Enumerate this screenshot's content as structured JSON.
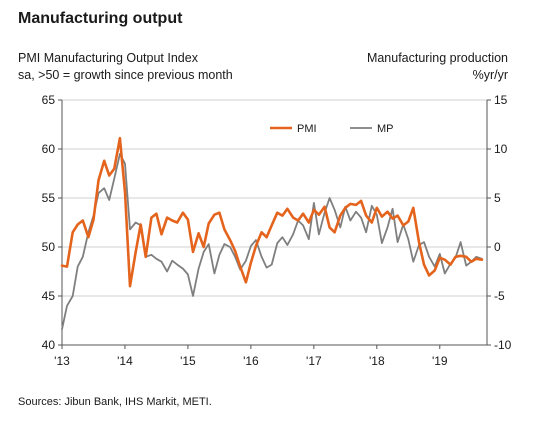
{
  "page": {
    "title": "Manufacturing output",
    "left_axis_title_line1": "PMI Manufacturing Output Index",
    "left_axis_title_line2": "sa, >50 = growth since previous month",
    "right_axis_title_line1": "Manufacturing production",
    "right_axis_title_line2": "%yr/yr",
    "source": "Sources: Jibun Bank, IHS Markit, METI."
  },
  "colors": {
    "pmi": "#e4641d",
    "mp": "#7f7f7f",
    "grid": "#d0d0d0",
    "axis": "#555555"
  },
  "chart_data": {
    "type": "line",
    "title": "Manufacturing output",
    "x_tick_labels": [
      "'13",
      "'14",
      "'15",
      "'16",
      "'17",
      "'18",
      "'19"
    ],
    "xlim": [
      2013.0,
      2019.75
    ],
    "ylim_left": [
      40,
      65
    ],
    "yticks_left": [
      40,
      45,
      50,
      55,
      60,
      65
    ],
    "ylim_right": [
      -10,
      15
    ],
    "yticks_right": [
      -10,
      -5,
      0,
      5,
      10,
      15
    ],
    "grid": "horizontal",
    "legend_placement": "top-right",
    "series": [
      {
        "name": "PMI",
        "axis": "left",
        "x": [
          2013.0,
          2013.08,
          2013.17,
          2013.25,
          2013.33,
          2013.42,
          2013.5,
          2013.58,
          2013.67,
          2013.75,
          2013.83,
          2013.92,
          2014.0,
          2014.08,
          2014.17,
          2014.25,
          2014.33,
          2014.42,
          2014.5,
          2014.58,
          2014.67,
          2014.75,
          2014.83,
          2014.92,
          2015.0,
          2015.08,
          2015.17,
          2015.25,
          2015.33,
          2015.42,
          2015.5,
          2015.58,
          2015.67,
          2015.75,
          2015.83,
          2015.92,
          2016.0,
          2016.08,
          2016.17,
          2016.25,
          2016.33,
          2016.42,
          2016.5,
          2016.58,
          2016.67,
          2016.75,
          2016.83,
          2016.92,
          2017.0,
          2017.08,
          2017.17,
          2017.25,
          2017.33,
          2017.42,
          2017.5,
          2017.58,
          2017.67,
          2017.75,
          2017.83,
          2017.92,
          2018.0,
          2018.08,
          2018.17,
          2018.25,
          2018.33,
          2018.42,
          2018.5,
          2018.58,
          2018.67,
          2018.75,
          2018.83,
          2018.92,
          2019.0,
          2019.08,
          2019.17,
          2019.25,
          2019.33,
          2019.42,
          2019.5,
          2019.58,
          2019.67
        ],
        "values": [
          48.1,
          48.0,
          51.5,
          52.3,
          52.7,
          51.0,
          52.8,
          56.8,
          58.8,
          57.3,
          58.0,
          61.1,
          55.6,
          46.0,
          49.5,
          52.3,
          49.0,
          53.0,
          53.4,
          51.3,
          53.0,
          52.7,
          52.5,
          53.5,
          52.8,
          49.5,
          51.4,
          50.0,
          52.4,
          53.3,
          53.5,
          51.8,
          50.7,
          49.6,
          48.0,
          46.4,
          48.4,
          50.1,
          51.5,
          51.0,
          52.2,
          53.5,
          53.2,
          53.9,
          53.0,
          52.7,
          53.4,
          52.5,
          53.8,
          53.3,
          54.1,
          52.0,
          51.5,
          53.2,
          54.0,
          54.4,
          54.3,
          54.7,
          53.2,
          52.5,
          54.0,
          53.1,
          53.6,
          52.9,
          53.2,
          52.2,
          52.6,
          54.0,
          50.5,
          48.2,
          47.1,
          47.6,
          48.9,
          48.7,
          48.2,
          49.0,
          49.1,
          49.0,
          48.5,
          48.8,
          48.7
        ]
      },
      {
        "name": "MP",
        "axis": "right",
        "x": [
          2013.0,
          2013.08,
          2013.17,
          2013.25,
          2013.33,
          2013.42,
          2013.5,
          2013.58,
          2013.67,
          2013.75,
          2013.83,
          2013.92,
          2014.0,
          2014.08,
          2014.17,
          2014.25,
          2014.33,
          2014.42,
          2014.5,
          2014.58,
          2014.67,
          2014.75,
          2014.83,
          2014.92,
          2015.0,
          2015.08,
          2015.17,
          2015.25,
          2015.33,
          2015.42,
          2015.5,
          2015.58,
          2015.67,
          2015.75,
          2015.83,
          2015.92,
          2016.0,
          2016.08,
          2016.17,
          2016.25,
          2016.33,
          2016.42,
          2016.5,
          2016.58,
          2016.67,
          2016.75,
          2016.83,
          2016.92,
          2017.0,
          2017.08,
          2017.17,
          2017.25,
          2017.33,
          2017.42,
          2017.5,
          2017.58,
          2017.67,
          2017.75,
          2017.83,
          2017.92,
          2018.0,
          2018.08,
          2018.17,
          2018.25,
          2018.33,
          2018.42,
          2018.5,
          2018.58,
          2018.67,
          2018.75,
          2018.83,
          2018.92,
          2019.0,
          2019.08,
          2019.17,
          2019.25,
          2019.33,
          2019.42,
          2019.5,
          2019.58,
          2019.67
        ],
        "values": [
          -8.4,
          -6.0,
          -5.0,
          -2.0,
          -1.0,
          1.5,
          3.2,
          5.5,
          6.0,
          4.8,
          7.0,
          9.5,
          8.5,
          1.8,
          2.5,
          2.2,
          -1.0,
          -0.8,
          -1.2,
          -1.5,
          -2.5,
          -1.4,
          -1.8,
          -2.2,
          -2.8,
          -5.0,
          -2.2,
          -0.5,
          0.3,
          -2.7,
          -0.8,
          0.3,
          0.0,
          -1.0,
          -2.3,
          -1.4,
          0.1,
          0.7,
          -1.0,
          -2.1,
          -1.8,
          0.4,
          1.0,
          0.2,
          1.3,
          2.7,
          2.2,
          0.8,
          4.5,
          1.3,
          3.5,
          5.0,
          3.8,
          2.0,
          4.1,
          2.7,
          3.6,
          3.0,
          1.5,
          4.2,
          3.3,
          0.4,
          2.0,
          3.9,
          0.5,
          2.3,
          0.8,
          -1.5,
          0.2,
          0.5,
          -1.0,
          -2.0,
          -0.7,
          -2.7,
          -1.7,
          -1.1,
          0.5,
          -1.9,
          -1.5,
          -1.0,
          -1.2
        ]
      }
    ]
  }
}
